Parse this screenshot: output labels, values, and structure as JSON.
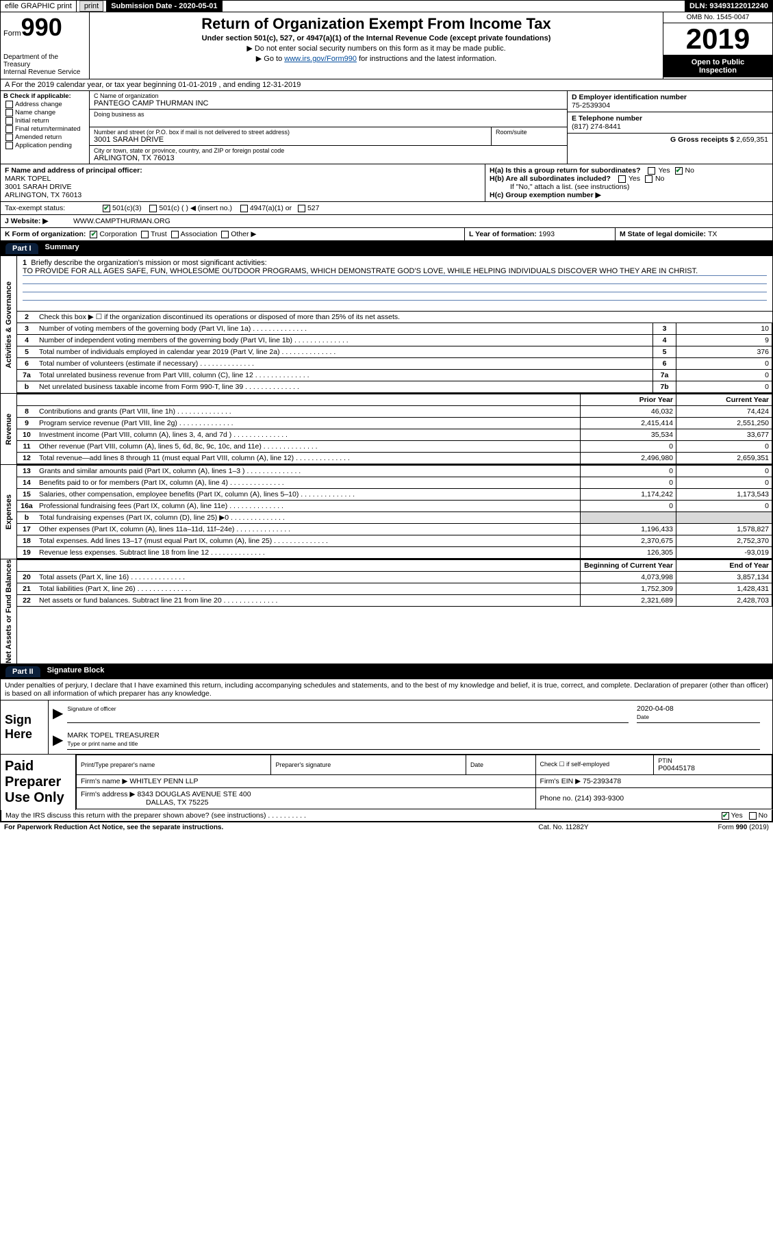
{
  "topbar": {
    "efile": "efile GRAPHIC print",
    "submission_label": "Submission Date - 2020-05-01",
    "dln_label": "DLN: 93493122012240"
  },
  "header": {
    "form_word": "Form",
    "form_number": "990",
    "dept": "Department of the Treasury",
    "irs": "Internal Revenue Service",
    "title": "Return of Organization Exempt From Income Tax",
    "subtitle": "Under section 501(c), 527, or 4947(a)(1) of the Internal Revenue Code (except private foundations)",
    "note1": "Do not enter social security numbers on this form as it may be made public.",
    "note2_pre": "Go to ",
    "note2_link": "www.irs.gov/Form990",
    "note2_post": " for instructions and the latest information.",
    "omb": "OMB No. 1545-0047",
    "year": "2019",
    "otp1": "Open to Public",
    "otp2": "Inspection"
  },
  "line_a": "A   For the 2019 calendar year, or tax year beginning 01-01-2019    , and ending 12-31-2019",
  "col_b": {
    "label": "B Check if applicable:",
    "opts": [
      "Address change",
      "Name change",
      "Initial return",
      "Final return/terminated",
      "Amended return",
      "Application pending"
    ]
  },
  "col_c": {
    "name_label": "C Name of organization",
    "name": "PANTEGO CAMP THURMAN INC",
    "dba_label": "Doing business as",
    "dba": "",
    "addr_label": "Number and street (or P.O. box if mail is not delivered to street address)",
    "addr": "3001 SARAH DRIVE",
    "room_label": "Room/suite",
    "room": "",
    "city_label": "City or town, state or province, country, and ZIP or foreign postal code",
    "city": "ARLINGTON, TX  76013"
  },
  "col_d": {
    "d_label": "D Employer identification number",
    "d_val": "75-2539304",
    "e_label": "E Telephone number",
    "e_val": "(817) 274-8441",
    "g_label": "G Gross receipts $ ",
    "g_val": "2,659,351"
  },
  "f_block": {
    "f_label": "F  Name and address of principal officer:",
    "name": "MARK TOPEL",
    "addr1": "3001 SARAH DRIVE",
    "addr2": "ARLINGTON, TX  76013"
  },
  "h_block": {
    "ha": "H(a)  Is this a group return for subordinates?",
    "hb": "H(b)  Are all subordinates included?",
    "hb_note": "If \"No,\" attach a list. (see instructions)",
    "hc": "H(c)  Group exemption number ▶",
    "yes": "Yes",
    "no": "No"
  },
  "row_i": {
    "label": "Tax-exempt status:",
    "o1": "501(c)(3)",
    "o2": "501(c) (   ) ◀ (insert no.)",
    "o3": "4947(a)(1) or",
    "o4": "527"
  },
  "row_j": {
    "label": "J   Website: ▶",
    "val": "WWW.CAMPTHURMAN.ORG"
  },
  "row_k": {
    "k_label": "K Form of organization:",
    "k_corp": "Corporation",
    "k_trust": "Trust",
    "k_assoc": "Association",
    "k_other": "Other ▶",
    "l_label": "L Year of formation: ",
    "l_val": "1993",
    "m_label": "M State of legal domicile: ",
    "m_val": "TX"
  },
  "part1": {
    "tab": "Part I",
    "title": "Summary"
  },
  "mission": {
    "num": "1",
    "label": "Briefly describe the organization's mission or most significant activities:",
    "text": "TO PROVIDE FOR ALL AGES SAFE, FUN, WHOLESOME OUTDOOR PROGRAMS, WHICH DEMONSTRATE GOD'S LOVE, WHILE HELPING INDIVIDUALS DISCOVER WHO THEY ARE IN CHRIST."
  },
  "side_labels": {
    "ag": "Activities & Governance",
    "rev": "Revenue",
    "exp": "Expenses",
    "na": "Net Assets or Fund Balances"
  },
  "ag_rows": [
    {
      "n": "2",
      "d": "Check this box ▶ ☐  if the organization discontinued its operations or disposed of more than 25% of its net assets."
    },
    {
      "n": "3",
      "d": "Number of voting members of the governing body (Part VI, line 1a)",
      "b": "3",
      "v": "10"
    },
    {
      "n": "4",
      "d": "Number of independent voting members of the governing body (Part VI, line 1b)",
      "b": "4",
      "v": "9"
    },
    {
      "n": "5",
      "d": "Total number of individuals employed in calendar year 2019 (Part V, line 2a)",
      "b": "5",
      "v": "376"
    },
    {
      "n": "6",
      "d": "Total number of volunteers (estimate if necessary)",
      "b": "6",
      "v": "0"
    },
    {
      "n": "7a",
      "d": "Total unrelated business revenue from Part VIII, column (C), line 12",
      "b": "7a",
      "v": "0"
    },
    {
      "n": "b",
      "d": "Net unrelated business taxable income from Form 990-T, line 39",
      "b": "7b",
      "v": "0"
    }
  ],
  "col_headers": {
    "prior": "Prior Year",
    "current": "Current Year"
  },
  "rev_rows": [
    {
      "n": "8",
      "d": "Contributions and grants (Part VIII, line 1h)",
      "p": "46,032",
      "c": "74,424"
    },
    {
      "n": "9",
      "d": "Program service revenue (Part VIII, line 2g)",
      "p": "2,415,414",
      "c": "2,551,250"
    },
    {
      "n": "10",
      "d": "Investment income (Part VIII, column (A), lines 3, 4, and 7d )",
      "p": "35,534",
      "c": "33,677"
    },
    {
      "n": "11",
      "d": "Other revenue (Part VIII, column (A), lines 5, 6d, 8c, 9c, 10c, and 11e)",
      "p": "0",
      "c": "0"
    },
    {
      "n": "12",
      "d": "Total revenue—add lines 8 through 11 (must equal Part VIII, column (A), line 12)",
      "p": "2,496,980",
      "c": "2,659,351"
    }
  ],
  "exp_rows": [
    {
      "n": "13",
      "d": "Grants and similar amounts paid (Part IX, column (A), lines 1–3 )",
      "p": "0",
      "c": "0"
    },
    {
      "n": "14",
      "d": "Benefits paid to or for members (Part IX, column (A), line 4)",
      "p": "0",
      "c": "0"
    },
    {
      "n": "15",
      "d": "Salaries, other compensation, employee benefits (Part IX, column (A), lines 5–10)",
      "p": "1,174,242",
      "c": "1,173,543"
    },
    {
      "n": "16a",
      "d": "Professional fundraising fees (Part IX, column (A), line 11e)",
      "p": "0",
      "c": "0"
    },
    {
      "n": "b",
      "d": "Total fundraising expenses (Part IX, column (D), line 25) ▶0",
      "p": "",
      "c": "",
      "shade": true
    },
    {
      "n": "17",
      "d": "Other expenses (Part IX, column (A), lines 11a–11d, 11f–24e)",
      "p": "1,196,433",
      "c": "1,578,827"
    },
    {
      "n": "18",
      "d": "Total expenses. Add lines 13–17 (must equal Part IX, column (A), line 25)",
      "p": "2,370,675",
      "c": "2,752,370"
    },
    {
      "n": "19",
      "d": "Revenue less expenses. Subtract line 18 from line 12",
      "p": "126,305",
      "c": "-93,019"
    }
  ],
  "na_headers": {
    "begin": "Beginning of Current Year",
    "end": "End of Year"
  },
  "na_rows": [
    {
      "n": "20",
      "d": "Total assets (Part X, line 16)",
      "p": "4,073,998",
      "c": "3,857,134"
    },
    {
      "n": "21",
      "d": "Total liabilities (Part X, line 26)",
      "p": "1,752,309",
      "c": "1,428,431"
    },
    {
      "n": "22",
      "d": "Net assets or fund balances. Subtract line 21 from line 20",
      "p": "2,321,689",
      "c": "2,428,703"
    }
  ],
  "part2": {
    "tab": "Part II",
    "title": "Signature Block"
  },
  "declaration": "Under penalties of perjury, I declare that I have examined this return, including accompanying schedules and statements, and to the best of my knowledge and belief, it is true, correct, and complete. Declaration of preparer (other than officer) is based on all information of which preparer has any knowledge.",
  "sign": {
    "left": "Sign Here",
    "sig_label": "Signature of officer",
    "date_label": "Date",
    "date": "2020-04-08",
    "name": "MARK TOPEL  TREASURER",
    "name_label": "Type or print name and title"
  },
  "prep": {
    "left": "Paid Preparer Use Only",
    "h1": "Print/Type preparer's name",
    "h2": "Preparer's signature",
    "h3": "Date",
    "h4a": "Check ☐  if self-employed",
    "h4b": "PTIN",
    "ptin": "P00445178",
    "firm_label": "Firm's name    ▶ ",
    "firm": "WHITLEY PENN LLP",
    "ein_label": "Firm's EIN ▶ ",
    "ein": "75-2393478",
    "addr_label": "Firm's address ▶ ",
    "addr1": "8343 DOUGLAS AVENUE STE 400",
    "addr2": "DALLAS, TX  75225",
    "phone_label": "Phone no. ",
    "phone": "(214) 393-9300"
  },
  "discuss": {
    "q": "May the IRS discuss this return with the preparer shown above? (see instructions)",
    "yes": "Yes",
    "no": "No"
  },
  "foot": {
    "left": "For Paperwork Reduction Act Notice, see the separate instructions.",
    "mid": "Cat. No. 11282Y",
    "right": "Form 990 (2019)"
  },
  "colors": {
    "link": "#004b9b",
    "rule": "#5a7db0",
    "check": "#0a7d2c",
    "shade": "#d9d9d9"
  }
}
